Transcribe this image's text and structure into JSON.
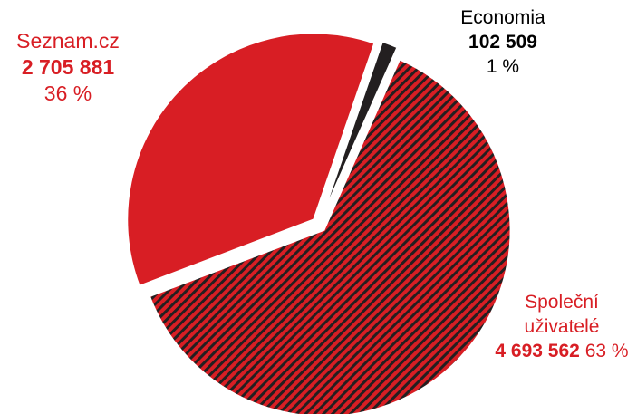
{
  "chart_data": {
    "type": "pie",
    "categories": [
      "Economia",
      "Společní uživatelé",
      "Seznam.cz"
    ],
    "values": [
      102509,
      4693562,
      2705881
    ],
    "value_labels": [
      "102 509",
      "4 693 562",
      "2 705 881"
    ],
    "percent_labels": [
      "1 %",
      "63 %",
      "36 %"
    ],
    "colors": [
      "#231f20",
      "#d81e24",
      "#d81e24"
    ],
    "label_colors": [
      "#000000",
      "#d81e24",
      "#d81e24"
    ],
    "hatch_color": "#231f20"
  }
}
